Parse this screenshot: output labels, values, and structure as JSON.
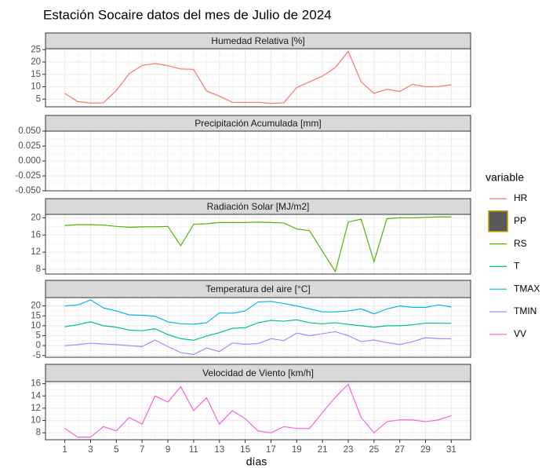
{
  "title": "Estación Socaire datos del mes de Julio de 2024",
  "xlabel": "días",
  "legend_title": "variable",
  "x": [
    1,
    2,
    3,
    4,
    5,
    6,
    7,
    8,
    9,
    10,
    11,
    12,
    13,
    14,
    15,
    16,
    17,
    18,
    19,
    20,
    21,
    22,
    23,
    24,
    25,
    26,
    27,
    28,
    29,
    30,
    31
  ],
  "xlim": [
    -0.5,
    32.5
  ],
  "xticks": [
    1,
    3,
    5,
    7,
    9,
    11,
    13,
    15,
    17,
    19,
    21,
    23,
    25,
    27,
    29,
    31
  ],
  "grid": true,
  "chart_data": [
    {
      "type": "line",
      "title": "Humedad Relativa [%]",
      "ylim": [
        1.9,
        25.4
      ],
      "yticks": [
        5,
        10,
        15,
        20,
        25
      ],
      "series": [
        {
          "name": "HR",
          "color": "#F8766D",
          "values": [
            7.3,
            4,
            3.4,
            3.5,
            8.5,
            15.3,
            18.6,
            19.4,
            18.5,
            17.2,
            17,
            8.3,
            6.2,
            3.7,
            3.7,
            3.7,
            3.3,
            3.5,
            9.7,
            12,
            14.3,
            17.8,
            24.3,
            12,
            7.3,
            9,
            8.1,
            11,
            10,
            10.1,
            10.8
          ]
        }
      ]
    },
    {
      "type": "bar",
      "title": "Precipitación Acumulada [mm]",
      "ylim": [
        -0.05,
        0.05
      ],
      "yticks": [
        {
          "value": -0.05,
          "label": "-0.050"
        },
        {
          "value": -0.025,
          "label": "-0.025"
        },
        {
          "value": 0,
          "label": "0.000"
        },
        {
          "value": 0.025,
          "label": "0.025"
        },
        {
          "value": 0.05,
          "label": "0.050"
        }
      ],
      "series": [
        {
          "name": "PP",
          "color": "#C49A00",
          "fill": "#595959",
          "values": [
            0,
            0,
            0,
            0,
            0,
            0,
            0,
            0,
            0,
            0,
            0,
            0,
            0,
            0,
            0,
            0,
            0,
            0,
            0,
            0,
            0,
            0,
            0,
            0,
            0,
            0,
            0,
            0,
            0,
            0,
            0
          ]
        }
      ]
    },
    {
      "type": "line",
      "title": "Radiación Solar [MJ/m2]",
      "ylim": [
        6.9,
        20.8
      ],
      "yticks": [
        8,
        12,
        16,
        20
      ],
      "series": [
        {
          "name": "RS",
          "color": "#53B400",
          "values": [
            18.2,
            18.4,
            18.4,
            18.3,
            18,
            17.8,
            17.9,
            17.9,
            18,
            13.5,
            18.5,
            18.6,
            18.9,
            18.9,
            18.9,
            19,
            18.9,
            18.8,
            17.4,
            17,
            12.2,
            7.5,
            19,
            19.7,
            9.8,
            19.8,
            20,
            20,
            20.1,
            20.2,
            20.2
          ]
        }
      ]
    },
    {
      "type": "line",
      "title": "Temperatura del aire [°C]",
      "ylim": [
        -5.9,
        24.2
      ],
      "yticks": [
        -5,
        0,
        5,
        10,
        15,
        20
      ],
      "series": [
        {
          "name": "T",
          "color": "#00C094",
          "values": [
            9.5,
            10.5,
            12,
            10,
            9.3,
            7.8,
            7.5,
            8.5,
            5.5,
            3.5,
            2.7,
            4.8,
            6.5,
            8.7,
            9,
            11.5,
            12.7,
            12.3,
            13,
            11.5,
            11,
            11.5,
            10.7,
            10,
            9.3,
            10,
            10,
            10.5,
            11.3,
            11.3,
            11.2
          ]
        },
        {
          "name": "TMAX",
          "color": "#00B6EB",
          "values": [
            20,
            20.5,
            23,
            19,
            17.5,
            15.5,
            15.3,
            14.8,
            12,
            11,
            10.8,
            11.5,
            16.5,
            16.3,
            17.5,
            22,
            22.3,
            21.2,
            20,
            18.5,
            17,
            17,
            17.5,
            18.5,
            16,
            18.5,
            20,
            19.3,
            19.3,
            20.5,
            19.5
          ]
        },
        {
          "name": "TMIN",
          "color": "#A58AFF",
          "values": [
            0,
            0.5,
            1.2,
            0.8,
            0.5,
            0,
            -0.5,
            2.8,
            -0.5,
            -3.5,
            -4.5,
            -1.2,
            -3,
            1.3,
            0.7,
            1,
            3.5,
            2.5,
            6.3,
            5,
            6,
            7,
            5,
            2,
            2.8,
            1.5,
            0.5,
            2,
            4,
            3.5,
            3.4
          ]
        }
      ]
    },
    {
      "type": "line",
      "title": "Velocidad de Viento [km/h]",
      "ylim": [
        6.87,
        16.33
      ],
      "yticks": [
        8,
        10,
        12,
        14,
        16
      ],
      "series": [
        {
          "name": "VV",
          "color": "#FB61D7",
          "values": [
            8.7,
            7.3,
            7.3,
            9,
            8.3,
            10.5,
            9.4,
            14,
            13,
            15.5,
            11.6,
            13.7,
            9.4,
            11.6,
            10.3,
            8.3,
            8,
            9,
            8.7,
            8.7,
            11.3,
            13.8,
            15.9,
            10.5,
            8,
            9.8,
            10.1,
            10.1,
            9.8,
            10.1,
            10.8
          ]
        }
      ]
    }
  ]
}
